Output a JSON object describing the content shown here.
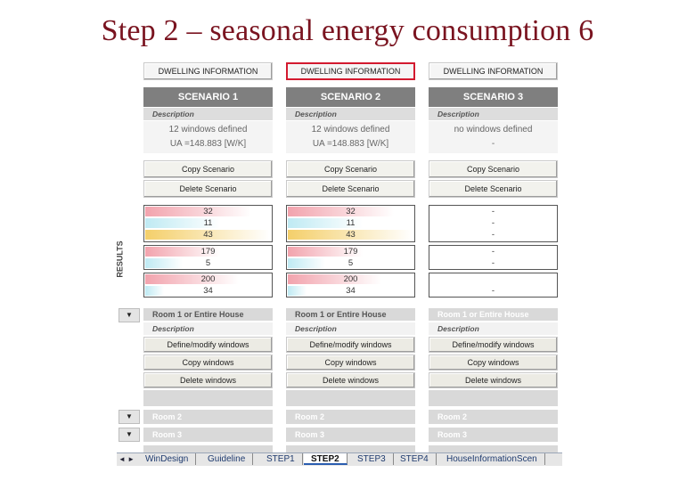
{
  "slide": {
    "title": "Step 2 – seasonal energy consumption 6"
  },
  "left_strip": {
    "results_label": "RESULTS",
    "dropdown_glyph": "▼"
  },
  "scenarios": [
    {
      "dwelling_label": "DWELLING INFORMATION",
      "name": "SCENARIO 1",
      "description_header": "Description",
      "description_lines": [
        "12 windows defined",
        "UA =148.883 [W/K]"
      ],
      "copy_label": "Copy Scenario",
      "delete_label": "Delete Scenario",
      "results": [
        {
          "value": "32",
          "fill": 0.85,
          "color": "#f2a3ad"
        },
        {
          "value": "11",
          "fill": 0.6,
          "color": "#bfeaf3"
        },
        {
          "value": "43",
          "fill": 1.0,
          "color": "#f4cf6a"
        },
        {
          "value": "179",
          "fill": 0.6,
          "color": "#f2a3ad"
        },
        {
          "value": "5",
          "fill": 0.3,
          "color": "#bfeaf3"
        },
        {
          "value": "200",
          "fill": 0.75,
          "color": "#f2a3ad"
        },
        {
          "value": "34",
          "fill": 0.15,
          "color": "#bfeaf3"
        }
      ],
      "room1_label": "Room 1 or Entire House",
      "room_desc": "Description",
      "define_label": "Define/modify windows",
      "copy_windows": "Copy windows",
      "delete_windows": "Delete windows",
      "room2_label": "Room 2",
      "room3_label": "Room 3"
    },
    {
      "dwelling_label": "DWELLING INFORMATION",
      "name": "SCENARIO 2",
      "description_header": "Description",
      "description_lines": [
        "12 windows defined",
        "UA =148.883 [W/K]"
      ],
      "copy_label": "Copy Scenario",
      "delete_label": "Delete Scenario",
      "results": [
        {
          "value": "32",
          "fill": 0.85,
          "color": "#f2a3ad"
        },
        {
          "value": "11",
          "fill": 0.6,
          "color": "#bfeaf3"
        },
        {
          "value": "43",
          "fill": 1.0,
          "color": "#f4cf6a"
        },
        {
          "value": "179",
          "fill": 0.6,
          "color": "#f2a3ad"
        },
        {
          "value": "5",
          "fill": 0.3,
          "color": "#bfeaf3"
        },
        {
          "value": "200",
          "fill": 0.75,
          "color": "#f2a3ad"
        },
        {
          "value": "34",
          "fill": 0.15,
          "color": "#bfeaf3"
        }
      ],
      "room1_label": "Room 1 or Entire House",
      "room_desc": "Description",
      "define_label": "Define/modify windows",
      "copy_windows": "Copy windows",
      "delete_windows": "Delete windows",
      "room2_label": "Room 2",
      "room3_label": "Room 3"
    },
    {
      "dwelling_label": "DWELLING INFORMATION",
      "name": "SCENARIO 3",
      "description_header": "Description",
      "description_lines": [
        "no windows defined",
        "-"
      ],
      "copy_label": "Copy Scenario",
      "delete_label": "Delete Scenario",
      "results": [
        {
          "value": "-",
          "fill": 0,
          "color": "#ffffff"
        },
        {
          "value": "-",
          "fill": 0,
          "color": "#ffffff"
        },
        {
          "value": "-",
          "fill": 0,
          "color": "#ffffff"
        },
        {
          "value": "-",
          "fill": 0,
          "color": "#ffffff"
        },
        {
          "value": "-",
          "fill": 0,
          "color": "#ffffff"
        },
        {
          "value": "",
          "fill": 0,
          "color": "#ffffff"
        },
        {
          "value": "-",
          "fill": 0,
          "color": "#ffffff"
        }
      ],
      "room1_label": "Room 1 or Entire House",
      "room_desc": "Description",
      "define_label": "Define/modify windows",
      "copy_windows": "Copy windows",
      "delete_windows": "Delete windows",
      "room2_label": "Room 2",
      "room3_label": "Room 3"
    }
  ],
  "sheet_tabs": {
    "nav": "◄ ►",
    "tabs": [
      "WinDesign",
      "Guideline",
      "STEP1",
      "STEP2",
      "STEP3",
      "STEP4",
      "HouseInformationScen"
    ],
    "active": "STEP2"
  },
  "colors": {
    "title": "#7a1420",
    "selected_outline": "#d31a2f",
    "scenario_header": "#7f7f7f"
  }
}
